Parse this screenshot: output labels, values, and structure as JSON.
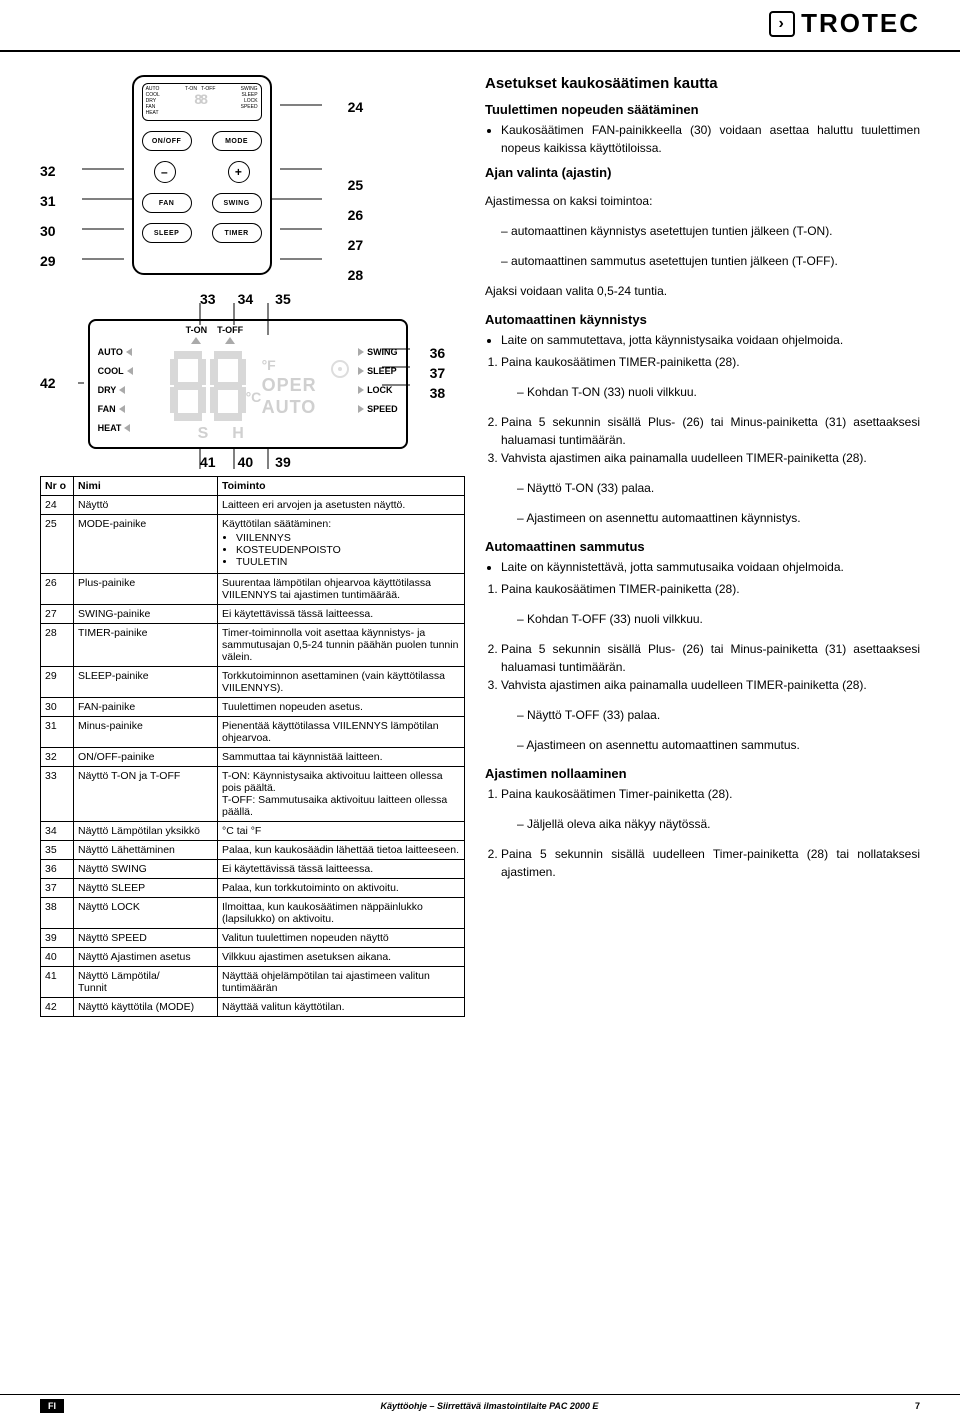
{
  "brand": "TROTEC",
  "remote": {
    "leftNumsTop": [
      "32",
      "31",
      "30",
      "29"
    ],
    "rightNumsTop": [
      "24",
      "25",
      "26",
      "27",
      "28"
    ],
    "lcd": {
      "left": [
        "AUTO",
        "COOL",
        "DRY",
        "FAN",
        "HEAT"
      ],
      "topL": "T-ON",
      "topR": "T-OFF",
      "right": [
        "SWING",
        "SLEEP",
        "LOCK",
        "SPEED"
      ]
    },
    "buttons": {
      "onoff": "ON/OFF",
      "mode": "MODE",
      "minus": "–",
      "plus": "+",
      "fan": "FAN",
      "swing": "SWING",
      "sleep": "SLEEP",
      "timer": "TIMER"
    }
  },
  "bigLcd": {
    "left42": "42",
    "topNums": [
      "33",
      "34",
      "35"
    ],
    "botNums": [
      "41",
      "40",
      "39"
    ],
    "rightNums": [
      "36",
      "37",
      "38"
    ],
    "left": [
      "AUTO",
      "COOL",
      "DRY",
      "FAN",
      "HEAT"
    ],
    "right": [
      "SWING",
      "SLEEP",
      "LOCK",
      "SPEED"
    ],
    "tOn": "T-ON",
    "tOff": "T-OFF",
    "oper": "OPER",
    "auto": "AUTO",
    "degF": "°F",
    "degC": "°C",
    "s": "S",
    "h": "H"
  },
  "table": {
    "head": {
      "nr": "Nr\no",
      "name": "Nimi",
      "fn": "Toiminto"
    },
    "rows": [
      {
        "nr": "24",
        "name": "Näyttö",
        "fn": "Laitteen eri arvojen ja asetusten näyttö."
      },
      {
        "nr": "25",
        "name": "MODE-painike",
        "fn": "Käyttötilan säätäminen:",
        "list": [
          "VIILENNYS",
          "KOSTEUDENPOISTO",
          "TUULETIN"
        ]
      },
      {
        "nr": "26",
        "name": "Plus-painike",
        "fn": "Suurentaa lämpötilan ohjearvoa käyttötilassa VIILENNYS tai ajastimen tuntimäärää."
      },
      {
        "nr": "27",
        "name": "SWING-painike",
        "fn": "Ei käytettävissä tässä laitteessa."
      },
      {
        "nr": "28",
        "name": "TIMER-painike",
        "fn": "Timer-toiminnolla voit asettaa käynnistys- ja sammutusajan 0,5-24 tunnin päähän puolen tunnin välein."
      },
      {
        "nr": "29",
        "name": "SLEEP-painike",
        "fn": "Torkkutoiminnon asettaminen (vain käyttötilassa VIILENNYS)."
      },
      {
        "nr": "30",
        "name": "FAN-painike",
        "fn": "Tuulettimen nopeuden asetus."
      },
      {
        "nr": "31",
        "name": "Minus-painike",
        "fn": "Pienentää käyttötilassa VIILENNYS lämpötilan ohjearvoa."
      },
      {
        "nr": "32",
        "name": "ON/OFF-painike",
        "fn": "Sammuttaa tai käynnistää laitteen."
      },
      {
        "nr": "33",
        "name": "Näyttö T-ON ja T-OFF",
        "fn": "T-ON: Käynnistysaika aktivoituu laitteen ollessa pois päältä.\nT-OFF: Sammutusaika aktivoituu laitteen ollessa päällä."
      },
      {
        "nr": "34",
        "name": "Näyttö Lämpötilan yksikkö",
        "fn": "°C tai °F"
      },
      {
        "nr": "35",
        "name": "Näyttö Lähettäminen",
        "fn": "Palaa, kun kaukosäädin lähettää tietoa laitteeseen."
      },
      {
        "nr": "36",
        "name": "Näyttö SWING",
        "fn": "Ei käytettävissä tässä laitteessa."
      },
      {
        "nr": "37",
        "name": "Näyttö SLEEP",
        "fn": "Palaa, kun torkkutoiminto on aktivoitu."
      },
      {
        "nr": "38",
        "name": "Näyttö LOCK",
        "fn": "Ilmoittaa, kun kaukosäätimen näppäinlukko (lapsilukko) on aktivoitu."
      },
      {
        "nr": "39",
        "name": "Näyttö SPEED",
        "fn": "Valitun tuulettimen nopeuden näyttö"
      },
      {
        "nr": "40",
        "name": "Näyttö Ajastimen asetus",
        "fn": "Vilkkuu ajastimen asetuksen aikana."
      },
      {
        "nr": "41",
        "name": "Näyttö Lämpötila/\nTunnit",
        "fn": "Näyttää ohjelämpötilan tai ajastimeen valitun tuntimäärän"
      },
      {
        "nr": "42",
        "name": "Näyttö käyttötila (MODE)",
        "fn": "Näyttää valitun käyttötilan."
      }
    ]
  },
  "right": {
    "h2": "Asetukset kaukosäätimen kautta",
    "fanSpeed": {
      "h": "Tuulettimen nopeuden säätäminen",
      "b": "Kaukosäätimen FAN-painikkeella (30) voidaan asettaa haluttu tuulettimen nopeus kaikissa käyttötiloissa."
    },
    "timerSel": {
      "h": "Ajan valinta (ajastin)",
      "intro": "Ajastimessa on kaksi toimintoa:",
      "d1": "automaattinen käynnistys asetettujen tuntien jälkeen (T-ON).",
      "d2": "automaattinen sammutus asetettujen tuntien jälkeen (T-OFF).",
      "range": "Ajaksi voidaan valita 0,5-24 tuntia."
    },
    "autoStart": {
      "h": "Automaattinen käynnistys",
      "b1": "Laite on sammutettava, jotta käynnistysaika voidaan ohjelmoida.",
      "s1": "Paina kaukosäätimen TIMER-painiketta (28).",
      "s1a": "Kohdan T-ON (33) nuoli vilkkuu.",
      "s2": "Paina 5 sekunnin sisällä Plus- (26) tai Minus-painiketta (31) asettaaksesi haluamasi tuntimäärän.",
      "s3": "Vahvista ajastimen aika painamalla uudelleen TIMER-painiketta (28).",
      "s3a": "Näyttö T-ON (33) palaa.",
      "s3b": "Ajastimeen on asennettu automaattinen käynnistys."
    },
    "autoStop": {
      "h": "Automaattinen sammutus",
      "b1": "Laite on käynnistettävä, jotta sammutusaika voidaan ohjelmoida.",
      "s1": "Paina kaukosäätimen TIMER-painiketta (28).",
      "s1a": "Kohdan T-OFF (33) nuoli vilkkuu.",
      "s2": "Paina 5 sekunnin sisällä Plus- (26) tai Minus-painiketta (31) asettaaksesi haluamasi tuntimäärän.",
      "s3": "Vahvista ajastimen aika painamalla uudelleen TIMER-painiketta (28).",
      "s3a": "Näyttö T-OFF (33) palaa.",
      "s3b": "Ajastimeen on asennettu automaattinen sammutus."
    },
    "reset": {
      "h": "Ajastimen nollaaminen",
      "s1": "Paina kaukosäätimen Timer-painiketta (28).",
      "s1a": "Jäljellä oleva aika näkyy näytössä.",
      "s2": "Paina 5 sekunnin sisällä uudelleen Timer-painiketta (28) tai nollataksesi ajastimen."
    }
  },
  "footer": {
    "lang": "FI",
    "title": "Käyttöohje – Siirrettävä ilmastointilaite PAC 2000 E",
    "page": "7"
  }
}
